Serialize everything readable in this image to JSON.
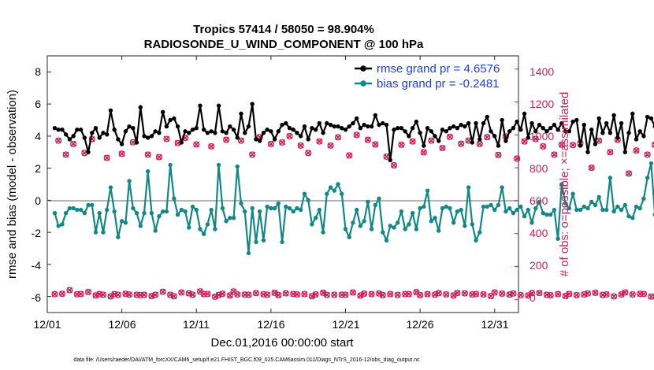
{
  "chart_data": {
    "type": "line",
    "title": "Tropics 57414 / 58050 = 98.904%",
    "subtitle": "RADIOSONDE_U_WIND_COMPONENT @ 100 hPa",
    "xlabel": "Dec.01,2016 00:00:00 start",
    "ylabel_left": "rmse and bias (model - observation)",
    "ylabel_right": "# of obs: o=possible; ×=assimilated",
    "xlim": [
      1,
      32.6
    ],
    "ylim_left": [
      -7,
      9
    ],
    "ylim_right": [
      -80,
      1480
    ],
    "x_ticks": [
      1,
      6,
      11,
      16,
      21,
      26,
      31
    ],
    "x_tick_labels": [
      "12/01",
      "12/06",
      "12/11",
      "12/16",
      "12/21",
      "12/26",
      "12/31"
    ],
    "y_left_ticks": [
      "-6",
      "-4",
      "-2",
      "0",
      "2",
      "4",
      "6",
      "8"
    ],
    "y_right_ticks": [
      "0",
      "200",
      "400",
      "600",
      "800",
      "1000",
      "1200",
      "1400"
    ],
    "legend": [
      "rmse grand pr = 4.6576",
      "bias grand pr = -0.2481"
    ],
    "series": [
      {
        "name": "rmse",
        "color": "#000000",
        "values": [
          4.5,
          4.4,
          4.4,
          4.1,
          3.8,
          4.0,
          4.4,
          4.4,
          3.9,
          3.0,
          4.2,
          4.5,
          3.9,
          4.2,
          4.1,
          5.6,
          4.4,
          3.8,
          3.5,
          4.3,
          4.6,
          4.5,
          3.6,
          5.8,
          4.0,
          3.9,
          4.0,
          4.3,
          4.2,
          5.5,
          4.6,
          5.0,
          5.1,
          4.6,
          3.6,
          4.3,
          4.2,
          4.4,
          4.5,
          5.9,
          4.4,
          4.2,
          4.3,
          4.2,
          5.9,
          4.3,
          4.2,
          4.6,
          4.4,
          3.9,
          5.4,
          4.2,
          4.6,
          6.0,
          3.8,
          3.7,
          4.2,
          4.4,
          4.3,
          3.8,
          4.3,
          4.7,
          4.8,
          4.5,
          4.4,
          4.2,
          4.0,
          4.6,
          3.8,
          4.5,
          4.4,
          4.8,
          4.2,
          4.8,
          4.7,
          4.6,
          4.6,
          4.5,
          4.4,
          4.6,
          4.8,
          5.1,
          4.5,
          4.7,
          4.6,
          4.6,
          5.3,
          4.7,
          4.8,
          4.7,
          2.5,
          4.4,
          4.5,
          4.5,
          4.3,
          4.0,
          4.5,
          4.9,
          4.2,
          3.4,
          4.5,
          4.3,
          4.0,
          3.7,
          4.4,
          4.3,
          4.5,
          4.6,
          4.5,
          4.7,
          4.6,
          4.8,
          3.6,
          4.8,
          3.8,
          4.8,
          5.2,
          4.3,
          4.0,
          3.4,
          5.0,
          3.7,
          4.3,
          4.5,
          4.9,
          4.4,
          5.4,
          3.9,
          4.8,
          4.3,
          4.7,
          4.5,
          4.3,
          4.5,
          4.7,
          4.4,
          4.8,
          4.3,
          4.3,
          4.9,
          5.0,
          3.4,
          4.7,
          3.0,
          4.4,
          3.5,
          5.1,
          4.2,
          4.8,
          4.2,
          5.3,
          3.9,
          4.8,
          3.0,
          4.2,
          5.4,
          3.8,
          4.3,
          4.0,
          5.2,
          5.1,
          4.6,
          4.1,
          4.6,
          4.7,
          4.5,
          5.3,
          4.0,
          5.4,
          1.8,
          4.9,
          4.6,
          4.5,
          5.7,
          3.6,
          4.7,
          4.2,
          4.3,
          6.7,
          4.0,
          3.5,
          3.7
        ]
      },
      {
        "name": "bias",
        "color": "#138786",
        "values": [
          -0.8,
          -1.6,
          -1.5,
          -0.8,
          -0.5,
          -0.5,
          -0.6,
          -0.6,
          -0.8,
          -0.3,
          -0.3,
          -2.0,
          -0.8,
          -2.0,
          -0.6,
          0.8,
          -0.7,
          -2.3,
          -1.3,
          -1.4,
          1.2,
          -0.5,
          -0.8,
          -1.6,
          -0.8,
          1.8,
          -0.8,
          -1.9,
          -1.0,
          -0.7,
          -0.7,
          2.2,
          0.1,
          -0.9,
          -0.6,
          -0.7,
          -1.7,
          -0.4,
          -0.6,
          -1.8,
          -2.1,
          -1.5,
          -0.6,
          -1.8,
          2.2,
          -0.5,
          -1.3,
          -1.1,
          -1.1,
          2.1,
          -0.2,
          -0.7,
          -3.3,
          -0.5,
          -2.6,
          -0.7,
          -2.5,
          -0.4,
          -0.5,
          -0.5,
          -0.2,
          -2.6,
          -0.4,
          -0.5,
          -0.7,
          -0.5,
          -0.6,
          0.4,
          0.0,
          -1.5,
          -1.1,
          -0.6,
          -2.0,
          0.4,
          0.8,
          0.6,
          1.0,
          0.4,
          -1.8,
          -2.3,
          -1.4,
          -0.6,
          -1.6,
          -1.3,
          -0.1,
          -1.8,
          -0.3,
          0.1,
          -2.0,
          -2.5,
          -1.6,
          -1.7,
          -1.4,
          -0.7,
          -1.8,
          -1.5,
          -0.8,
          -1.8,
          -0.5,
          -0.4,
          0.6,
          -1.3,
          -1.1,
          -1.9,
          -0.5,
          -0.4,
          -0.5,
          -1.4,
          -0.7,
          -0.6,
          -1.6,
          0.8,
          -1.5,
          -2.5,
          -2.0,
          -0.4,
          -0.4,
          -0.3,
          -0.6,
          -0.3,
          0.8,
          -0.7,
          -0.5,
          -0.8,
          -0.6,
          -0.4,
          -1.0,
          -0.6,
          -1.4,
          -0.5,
          -0.1,
          -0.8,
          -0.9,
          -0.9,
          -0.6,
          -2.4,
          1.0,
          -0.2,
          -0.5,
          0.4,
          -0.6,
          -0.6,
          -0.4,
          -0.5,
          -0.1,
          -0.3,
          0.2,
          -0.6,
          -0.6,
          1.4,
          -0.7,
          -0.4,
          -0.6,
          -0.3,
          -1.0,
          -1.1,
          -0.4,
          -0.5,
          0.1,
          1.4,
          2.3,
          -0.9,
          -0.5,
          -0.9,
          -0.5,
          -0.8,
          -0.5,
          -0.3,
          -0.6,
          -0.2,
          -0.6,
          -0.4,
          -1.4,
          -0.6,
          -1.9,
          -1.1,
          -1.2,
          -0.5,
          -1.7,
          0.2,
          -0.5,
          -3.8,
          0.4,
          -0.3
        ]
      },
      {
        "name": "obs_possible",
        "marker": "o",
        "axis": "right",
        "color": "#cc1f5a",
        "values": [
          32,
          965,
          34,
          880,
          56,
          945,
          31,
          33,
          890,
          45,
          974,
          24,
          32,
          28,
          860,
          18,
          32,
          28,
          885,
          34,
          29,
          955,
          28,
          26,
          28,
          880,
          20,
          28,
          865,
          46,
          975,
          28,
          19,
          950,
          42,
          982,
          37,
          28,
          942,
          48,
          32,
          33,
          930,
          16,
          27,
          34,
          970,
          24,
          48,
          30,
          965,
          29,
          28,
          880,
          38,
          986,
          31,
          28,
          945,
          40,
          26,
          954,
          37,
          992,
          33,
          30,
          935,
          32,
          890,
          19,
          30,
          960,
          40,
          27,
          935,
          28,
          985,
          28,
          28,
          875,
          42,
          1000,
          23,
          35,
          970,
          32,
          942,
          36,
          26,
          868,
          32,
          815,
          27,
          940,
          32,
          32,
          960,
          44,
          26,
          894,
          32,
          965,
          29,
          38,
          920,
          30,
          988,
          24,
          39,
          946,
          37,
          965,
          30,
          32,
          945,
          30,
          986,
          20,
          42,
          878,
          35,
          990,
          29,
          36,
          856,
          26,
          960,
          24,
          38,
          975,
          39,
          930,
          28,
          25,
          880,
          32,
          940,
          20,
          33,
          938,
          26,
          948,
          30,
          36,
          800,
          40,
          965,
          27,
          30,
          895,
          18,
          970,
          30,
          42,
          765,
          30,
          905,
          34,
          33,
          880,
          17,
          940,
          30,
          30,
          938,
          41,
          965,
          25,
          34,
          958,
          30,
          980,
          24,
          28,
          954,
          28,
          935,
          22,
          30,
          946,
          29,
          980,
          24,
          36,
          935,
          18,
          985,
          29
        ]
      },
      {
        "name": "obs_assimilated",
        "marker": "x",
        "axis": "right",
        "color": "#cc1f5a",
        "values": [
          32,
          965,
          34,
          880,
          56,
          945,
          31,
          33,
          890,
          45,
          974,
          24,
          32,
          28,
          860,
          18,
          32,
          28,
          885,
          34,
          29,
          955,
          28,
          26,
          28,
          880,
          20,
          28,
          865,
          46,
          975,
          28,
          19,
          950,
          42,
          982,
          37,
          28,
          942,
          48,
          32,
          33,
          930,
          16,
          27,
          34,
          970,
          24,
          48,
          30,
          965,
          29,
          28,
          880,
          38,
          986,
          31,
          28,
          945,
          40,
          26,
          954,
          37,
          992,
          33,
          30,
          935,
          32,
          890,
          19,
          30,
          960,
          40,
          27,
          935,
          28,
          985,
          28,
          28,
          875,
          42,
          1000,
          23,
          35,
          970,
          32,
          942,
          36,
          26,
          868,
          32,
          815,
          27,
          940,
          32,
          32,
          960,
          44,
          26,
          894,
          32,
          965,
          29,
          38,
          920,
          30,
          988,
          24,
          39,
          946,
          37,
          965,
          30,
          32,
          945,
          30,
          986,
          20,
          42,
          878,
          35,
          990,
          29,
          36,
          856,
          26,
          960,
          24,
          38,
          975,
          39,
          930,
          28,
          25,
          880,
          32,
          940,
          20,
          33,
          938,
          26,
          948,
          30,
          36,
          800,
          40,
          965,
          27,
          30,
          895,
          18,
          970,
          30,
          42,
          765,
          30,
          905,
          34,
          33,
          880,
          17,
          940,
          30,
          30,
          938,
          41,
          965,
          25,
          34,
          958,
          30,
          980,
          24,
          28,
          954,
          28,
          935,
          22,
          30,
          946,
          29,
          980,
          24,
          36,
          935,
          18,
          985,
          29
        ]
      }
    ]
  },
  "footnote": "data file: /Users/raeder/DAI/ATM_forcXX/CAM6_setup/f.e21.FHIST_BGC.f09_025.CAM6assim.011/Diags_NTrS_2016-12/obs_diag_output.nc",
  "colors": {
    "rmse": "#000000",
    "bias": "#138786",
    "obs": "#cc1f5a",
    "legend_text": "#1f3fe0",
    "zero_line": "#b3b3b3"
  }
}
